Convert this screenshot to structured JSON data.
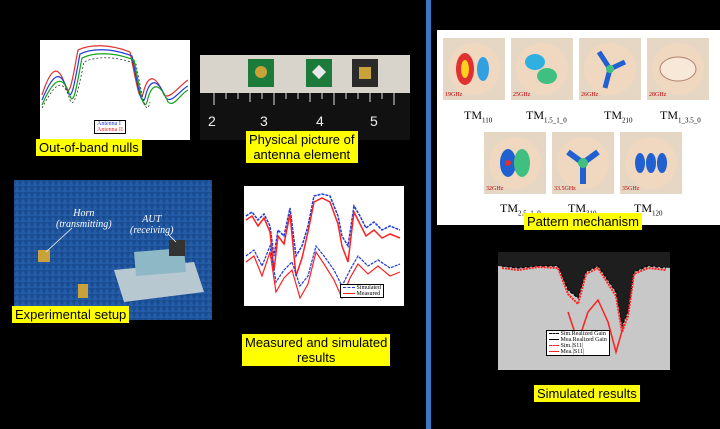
{
  "labels": {
    "nulls": "Out-of-band nulls",
    "physical_line1": "Physical picture of",
    "physical_line2": "antenna element",
    "experimental": "Experimental setup",
    "measured_line1": "Measured and simulated",
    "measured_line2": "results",
    "pattern": "Pattern mechanism",
    "simulated": "Simulated results"
  },
  "nulls_legend": [
    "Antenna I",
    "Antenna II"
  ],
  "ruler_numbers": [
    "2",
    "3",
    "4",
    "5"
  ],
  "setup": {
    "horn": "Horn",
    "horn_sub": "(transmitting)",
    "aut": "AUT",
    "aut_sub": "(receiving)"
  },
  "measured_legend": [
    "Simulated",
    "Measured"
  ],
  "modes": {
    "row1_freqs": [
      "19GHz",
      "25GHz",
      "26GHz",
      "28GHz"
    ],
    "row2_freqs": [
      "32GHz",
      "33.5GHz",
      "35GHz"
    ],
    "row1_names": [
      {
        "base": "TM",
        "sub": "110"
      },
      {
        "base": "TM",
        "sub": "1.5_1_0"
      },
      {
        "base": "TM",
        "sub": "210"
      },
      {
        "base": "TM",
        "sub": "1_3.5_0"
      }
    ],
    "row2_names": [
      {
        "base": "TM",
        "sub": "2.5_1_0"
      },
      {
        "base": "TM",
        "sub": "310"
      },
      {
        "base": "TM",
        "sub": "120"
      }
    ]
  },
  "sim_legend": [
    "Sim.Realized Gain",
    "Mea.Realized Gain",
    "Sim.|S11|",
    "Mea.|S11|"
  ],
  "colors": {
    "label_bg": "#ffff00",
    "divider": "#3a78c2",
    "red": "#e00000",
    "blue": "#1f3bd6",
    "green": "#11a31a"
  }
}
